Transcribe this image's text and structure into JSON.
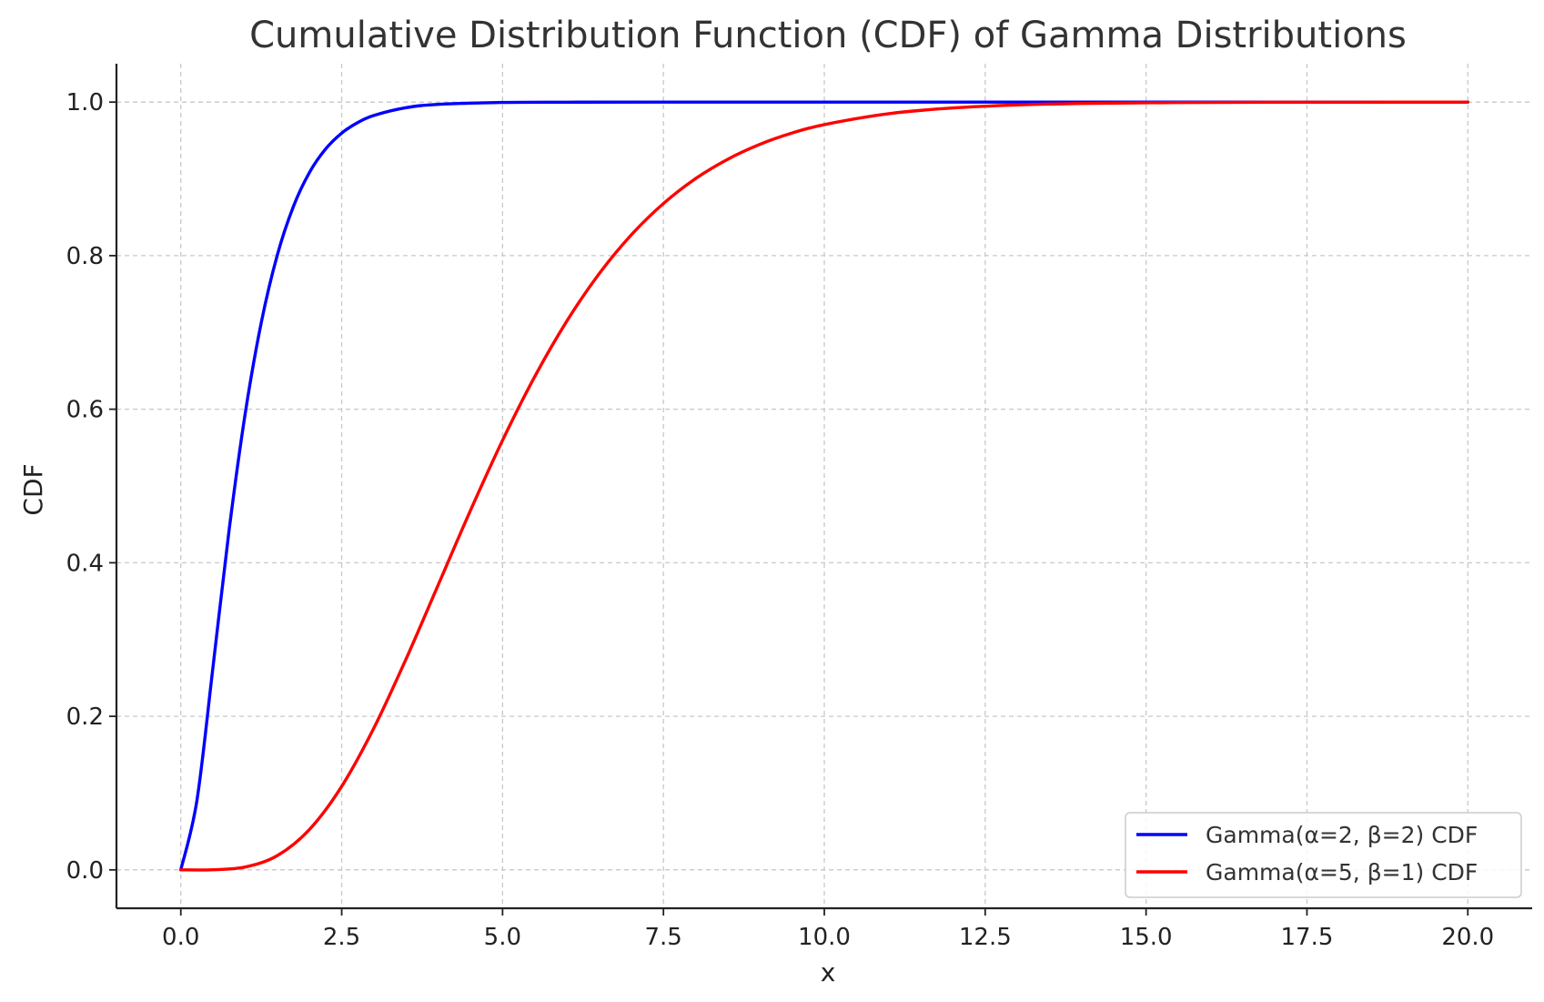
{
  "chart_data": {
    "type": "line",
    "title": "Cumulative Distribution Function (CDF) of Gamma Distributions",
    "xlabel": "x",
    "ylabel": "CDF",
    "xlim": [
      -1,
      21
    ],
    "ylim": [
      -0.05,
      1.05
    ],
    "xticks": [
      0,
      2.5,
      5,
      7.5,
      10,
      12.5,
      15,
      17.5,
      20
    ],
    "xtick_labels": [
      "0.0",
      "2.5",
      "5.0",
      "7.5",
      "10.0",
      "12.5",
      "15.0",
      "17.5",
      "20.0"
    ],
    "yticks": [
      0,
      0.2,
      0.4,
      0.6,
      0.8,
      1.0
    ],
    "ytick_labels": [
      "0.0",
      "0.2",
      "0.4",
      "0.6",
      "0.8",
      "1.0"
    ],
    "grid": true,
    "legend_position": "bottom-right",
    "series": [
      {
        "name": "Gamma(α=2, β=2) CDF",
        "color": "#0000ff",
        "x": [
          0,
          0.25,
          0.5,
          0.75,
          1.0,
          1.25,
          1.5,
          1.75,
          2.0,
          2.25,
          2.5,
          2.75,
          3.0,
          3.5,
          4.0,
          5.0,
          6.0,
          8.0,
          10.0,
          12.5,
          15.0,
          17.5,
          20.0
        ],
        "y": [
          0,
          0.0902,
          0.2642,
          0.4422,
          0.594,
          0.7127,
          0.8009,
          0.8641,
          0.9084,
          0.9389,
          0.9596,
          0.9734,
          0.9826,
          0.9927,
          0.997,
          0.9995,
          0.9999,
          1.0,
          1.0,
          1.0,
          1.0,
          1.0,
          1.0
        ]
      },
      {
        "name": "Gamma(α=5, β=1) CDF",
        "color": "#ff0000",
        "x": [
          0,
          0.5,
          1.0,
          1.5,
          2.0,
          2.5,
          3.0,
          3.5,
          4.0,
          4.5,
          5.0,
          5.5,
          6.0,
          6.5,
          7.0,
          7.5,
          8.0,
          8.5,
          9.0,
          9.5,
          10.0,
          11.0,
          12.0,
          13.0,
          14.0,
          15.0,
          16.0,
          17.0,
          18.0,
          19.0,
          20.0
        ],
        "y": [
          0,
          0.0002,
          0.0037,
          0.0186,
          0.0527,
          0.1088,
          0.1847,
          0.2746,
          0.3712,
          0.4679,
          0.5595,
          0.6425,
          0.7149,
          0.7763,
          0.827,
          0.8679,
          0.9004,
          0.9256,
          0.945,
          0.9597,
          0.9707,
          0.9849,
          0.9924,
          0.9963,
          0.9982,
          0.9991,
          0.9996,
          0.9998,
          0.9999,
          1.0,
          1.0
        ]
      }
    ]
  }
}
